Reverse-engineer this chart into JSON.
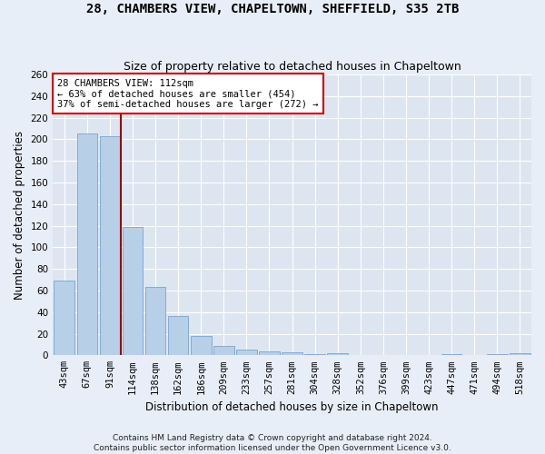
{
  "title1": "28, CHAMBERS VIEW, CHAPELTOWN, SHEFFIELD, S35 2TB",
  "title2": "Size of property relative to detached houses in Chapeltown",
  "xlabel": "Distribution of detached houses by size in Chapeltown",
  "ylabel": "Number of detached properties",
  "categories": [
    "43sqm",
    "67sqm",
    "91sqm",
    "114sqm",
    "138sqm",
    "162sqm",
    "186sqm",
    "209sqm",
    "233sqm",
    "257sqm",
    "281sqm",
    "304sqm",
    "328sqm",
    "352sqm",
    "376sqm",
    "399sqm",
    "423sqm",
    "447sqm",
    "471sqm",
    "494sqm",
    "518sqm"
  ],
  "values": [
    69,
    205,
    203,
    119,
    63,
    36,
    18,
    9,
    5,
    4,
    3,
    1,
    2,
    0,
    0,
    0,
    0,
    1,
    0,
    1,
    2
  ],
  "bar_color": "#b8cfe8",
  "bar_edge_color": "#6699cc",
  "vline_x": 2.5,
  "vline_color": "#990000",
  "annotation_line1": "28 CHAMBERS VIEW: 112sqm",
  "annotation_line2": "← 63% of detached houses are smaller (454)",
  "annotation_line3": "37% of semi-detached houses are larger (272) →",
  "annotation_box_color": "#ffffff",
  "annotation_box_edge": "#cc0000",
  "ylim": [
    0,
    260
  ],
  "yticks": [
    0,
    20,
    40,
    60,
    80,
    100,
    120,
    140,
    160,
    180,
    200,
    220,
    240,
    260
  ],
  "bg_color": "#dde6f0",
  "fig_bg_color": "#e8eef8",
  "grid_color": "#ffffff",
  "title_fontsize": 10,
  "subtitle_fontsize": 9,
  "axis_label_fontsize": 8.5,
  "tick_fontsize": 7.5,
  "footer_fontsize": 6.5,
  "footer": "Contains HM Land Registry data © Crown copyright and database right 2024.\nContains public sector information licensed under the Open Government Licence v3.0."
}
